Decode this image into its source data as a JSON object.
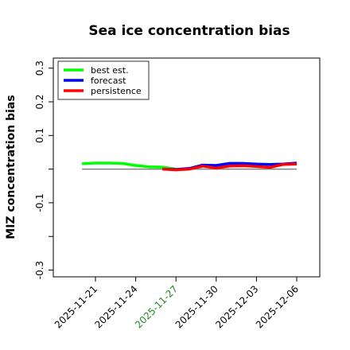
{
  "chart_data": {
    "type": "line",
    "title": "Sea ice concentration bias",
    "ylabel": "MIZ concentration bias",
    "ylim": [
      -0.32,
      0.33
    ],
    "yticks": [
      -0.3,
      -0.2,
      -0.1,
      0.0,
      0.1,
      0.2,
      0.3
    ],
    "ytick_labels": [
      "-0.3",
      "",
      "-0.1",
      "",
      "0.1",
      "0.2",
      "0.3"
    ],
    "x_ticks": [
      "2025-11-21",
      "2025-11-24",
      "2025-11-27",
      "2025-11-30",
      "2025-12-03",
      "2025-12-06"
    ],
    "highlight_tick": "2025-11-27",
    "highlight_color": "#228B22",
    "legend": {
      "position": "upper left",
      "entries": [
        "best est.",
        "forecast",
        "persistence"
      ]
    },
    "zero_line": {
      "y": 0.0,
      "x_start": "2025-11-20",
      "x_end": "2025-12-06",
      "color": "#808080"
    },
    "series": [
      {
        "name": "best est.",
        "color": "#00ff00",
        "x": [
          "2025-11-20",
          "2025-11-21",
          "2025-11-22",
          "2025-11-23",
          "2025-11-24",
          "2025-11-25",
          "2025-11-26",
          "2025-11-27"
        ],
        "values": [
          0.016,
          0.018,
          0.018,
          0.017,
          0.011,
          0.007,
          0.006,
          0.0
        ]
      },
      {
        "name": "forecast",
        "color": "#0000ff",
        "x": [
          "2025-11-26",
          "2025-11-27",
          "2025-11-28",
          "2025-11-29",
          "2025-11-30",
          "2025-12-01",
          "2025-12-02",
          "2025-12-03",
          "2025-12-04",
          "2025-12-05",
          "2025-12-06"
        ],
        "values": [
          0.0,
          -0.001,
          0.002,
          0.012,
          0.011,
          0.017,
          0.017,
          0.015,
          0.014,
          0.015,
          0.018
        ]
      },
      {
        "name": "persistence",
        "color": "#ff0000",
        "x": [
          "2025-11-26",
          "2025-11-27",
          "2025-11-28",
          "2025-11-29",
          "2025-11-30",
          "2025-12-01",
          "2025-12-02",
          "2025-12-03",
          "2025-12-04",
          "2025-12-05",
          "2025-12-06"
        ],
        "values": [
          0.0,
          -0.002,
          0.0,
          0.009,
          0.003,
          0.009,
          0.01,
          0.008,
          0.005,
          0.014,
          0.015
        ]
      }
    ]
  }
}
